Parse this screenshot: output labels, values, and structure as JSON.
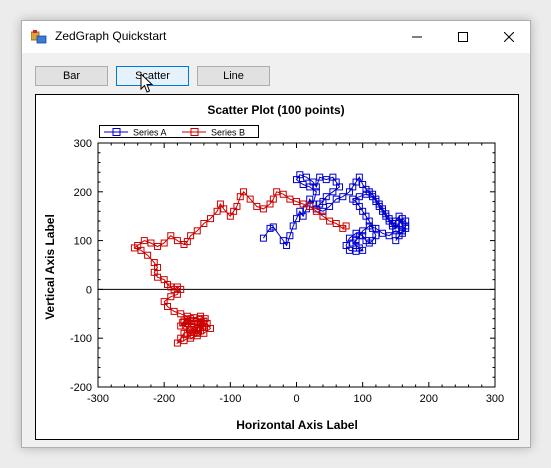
{
  "window": {
    "title": "ZedGraph Quickstart",
    "controls": {
      "minimize": "minimize-icon",
      "maximize": "maximize-icon",
      "close": "close-icon"
    }
  },
  "toolbar": {
    "buttons": [
      {
        "label": "Bar",
        "active": false
      },
      {
        "label": "Scatter",
        "active": true
      },
      {
        "label": "Line",
        "active": false
      }
    ]
  },
  "colors": {
    "series_a": "#0000cc",
    "series_b": "#cc0000",
    "accent": "#0078d7"
  },
  "chart_data": {
    "type": "scatter",
    "title": "Scatter Plot (100 points)",
    "xlabel": "Horizontal Axis Label",
    "ylabel": "Vertical Axis Label",
    "xlim": [
      -300,
      300
    ],
    "ylim": [
      -200,
      300
    ],
    "x_ticks": [
      -300,
      -200,
      -100,
      0,
      100,
      200,
      300
    ],
    "y_ticks": [
      -200,
      -100,
      0,
      100,
      200,
      300
    ],
    "legend_position": "top-left",
    "series": [
      {
        "name": "Series A",
        "color": "#0000cc",
        "points": [
          [
            -50,
            105
          ],
          [
            -40,
            125
          ],
          [
            -35,
            128
          ],
          [
            -20,
            100
          ],
          [
            -15,
            90
          ],
          [
            -10,
            110
          ],
          [
            -5,
            130
          ],
          [
            0,
            145
          ],
          [
            5,
            160
          ],
          [
            10,
            150
          ],
          [
            15,
            165
          ],
          [
            20,
            185
          ],
          [
            25,
            175
          ],
          [
            30,
            200
          ],
          [
            20,
            210
          ],
          [
            10,
            215
          ],
          [
            0,
            225
          ],
          [
            5,
            235
          ],
          [
            15,
            230
          ],
          [
            25,
            220
          ],
          [
            30,
            210
          ],
          [
            35,
            230
          ],
          [
            45,
            225
          ],
          [
            55,
            230
          ],
          [
            60,
            220
          ],
          [
            65,
            210
          ],
          [
            55,
            200
          ],
          [
            45,
            190
          ],
          [
            40,
            180
          ],
          [
            35,
            175
          ],
          [
            30,
            165
          ],
          [
            40,
            160
          ],
          [
            50,
            170
          ],
          [
            60,
            185
          ],
          [
            70,
            190
          ],
          [
            80,
            200
          ],
          [
            85,
            210
          ],
          [
            90,
            220
          ],
          [
            95,
            230
          ],
          [
            100,
            215
          ],
          [
            105,
            205
          ],
          [
            110,
            200
          ],
          [
            115,
            195
          ],
          [
            120,
            180
          ],
          [
            125,
            170
          ],
          [
            130,
            160
          ],
          [
            135,
            150
          ],
          [
            140,
            140
          ],
          [
            145,
            130
          ],
          [
            150,
            140
          ],
          [
            155,
            150
          ],
          [
            160,
            130
          ],
          [
            165,
            125
          ],
          [
            160,
            115
          ],
          [
            150,
            120
          ],
          [
            140,
            110
          ],
          [
            130,
            115
          ],
          [
            120,
            125
          ],
          [
            110,
            130
          ],
          [
            100,
            120
          ],
          [
            95,
            110
          ],
          [
            90,
            100
          ],
          [
            85,
            95
          ],
          [
            90,
            90
          ],
          [
            95,
            85
          ],
          [
            100,
            80
          ],
          [
            90,
            78
          ],
          [
            80,
            80
          ],
          [
            75,
            90
          ],
          [
            80,
            105
          ],
          [
            90,
            115
          ],
          [
            100,
            110
          ],
          [
            105,
            100
          ],
          [
            110,
            95
          ],
          [
            115,
            100
          ],
          [
            120,
            110
          ],
          [
            115,
            125
          ],
          [
            110,
            140
          ],
          [
            105,
            150
          ],
          [
            100,
            160
          ],
          [
            95,
            170
          ],
          [
            90,
            180
          ],
          [
            85,
            185
          ],
          [
            95,
            190
          ],
          [
            105,
            195
          ],
          [
            115,
            190
          ],
          [
            120,
            185
          ],
          [
            125,
            175
          ],
          [
            130,
            165
          ],
          [
            135,
            155
          ],
          [
            140,
            145
          ],
          [
            145,
            135
          ],
          [
            150,
            125
          ],
          [
            155,
            135
          ],
          [
            160,
            145
          ],
          [
            165,
            140
          ],
          [
            165,
            130
          ],
          [
            160,
            120
          ],
          [
            155,
            110
          ],
          [
            150,
            100
          ]
        ]
      },
      {
        "name": "Series B",
        "color": "#cc0000",
        "points": [
          [
            75,
            130
          ],
          [
            70,
            125
          ],
          [
            60,
            135
          ],
          [
            50,
            140
          ],
          [
            40,
            150
          ],
          [
            30,
            160
          ],
          [
            20,
            170
          ],
          [
            10,
            175
          ],
          [
            0,
            180
          ],
          [
            -10,
            185
          ],
          [
            -20,
            195
          ],
          [
            -30,
            200
          ],
          [
            -35,
            185
          ],
          [
            -40,
            175
          ],
          [
            -50,
            165
          ],
          [
            -60,
            170
          ],
          [
            -70,
            185
          ],
          [
            -80,
            200
          ],
          [
            -85,
            190
          ],
          [
            -90,
            170
          ],
          [
            -95,
            160
          ],
          [
            -100,
            150
          ],
          [
            -110,
            165
          ],
          [
            -115,
            175
          ],
          [
            -120,
            160
          ],
          [
            -130,
            145
          ],
          [
            -140,
            135
          ],
          [
            -150,
            120
          ],
          [
            -160,
            110
          ],
          [
            -165,
            98
          ],
          [
            -170,
            92
          ],
          [
            -180,
            100
          ],
          [
            -190,
            110
          ],
          [
            -200,
            95
          ],
          [
            -210,
            88
          ],
          [
            -220,
            95
          ],
          [
            -230,
            100
          ],
          [
            -240,
            90
          ],
          [
            -245,
            85
          ],
          [
            -235,
            80
          ],
          [
            -225,
            70
          ],
          [
            -215,
            55
          ],
          [
            -210,
            45
          ],
          [
            -215,
            35
          ],
          [
            -210,
            25
          ],
          [
            -200,
            20
          ],
          [
            -195,
            10
          ],
          [
            -190,
            5
          ],
          [
            -185,
            0
          ],
          [
            -180,
            5
          ],
          [
            -175,
            0
          ],
          [
            -180,
            -10
          ],
          [
            -190,
            -15
          ],
          [
            -200,
            -25
          ],
          [
            -195,
            -35
          ],
          [
            -185,
            -45
          ],
          [
            -175,
            -50
          ],
          [
            -165,
            -55
          ],
          [
            -160,
            -60
          ],
          [
            -170,
            -65
          ],
          [
            -175,
            -75
          ],
          [
            -165,
            -70
          ],
          [
            -155,
            -65
          ],
          [
            -145,
            -60
          ],
          [
            -140,
            -70
          ],
          [
            -150,
            -80
          ],
          [
            -160,
            -85
          ],
          [
            -170,
            -90
          ],
          [
            -175,
            -100
          ],
          [
            -180,
            -110
          ],
          [
            -170,
            -105
          ],
          [
            -160,
            -95
          ],
          [
            -150,
            -90
          ],
          [
            -145,
            -85
          ],
          [
            -140,
            -75
          ],
          [
            -135,
            -70
          ],
          [
            -130,
            -80
          ],
          [
            -140,
            -90
          ],
          [
            -150,
            -95
          ],
          [
            -160,
            -100
          ],
          [
            -165,
            -90
          ],
          [
            -155,
            -78
          ],
          [
            -145,
            -68
          ],
          [
            -138,
            -60
          ],
          [
            -145,
            -55
          ],
          [
            -155,
            -58
          ],
          [
            -165,
            -62
          ],
          [
            -158,
            -70
          ],
          [
            -150,
            -72
          ],
          [
            -142,
            -78
          ],
          [
            -148,
            -85
          ],
          [
            -155,
            -88
          ],
          [
            -162,
            -82
          ],
          [
            -168,
            -75
          ],
          [
            -172,
            -68
          ],
          [
            -165,
            -66
          ],
          [
            -158,
            -64
          ],
          [
            -152,
            -66
          ],
          [
            -146,
            -70
          ],
          [
            -140,
            -65
          ]
        ]
      }
    ]
  }
}
